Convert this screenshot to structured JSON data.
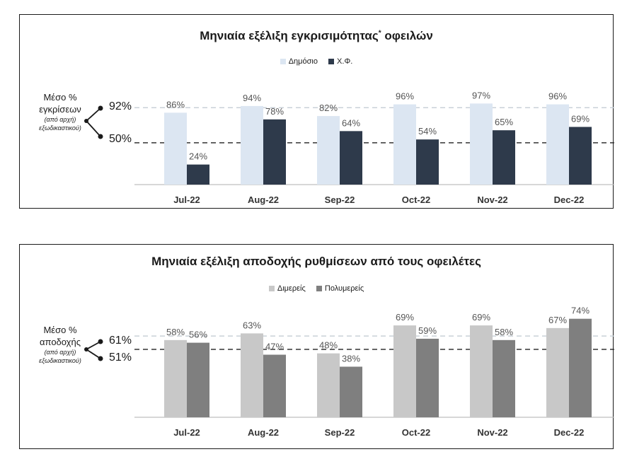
{
  "chart_data": [
    {
      "type": "bar",
      "title": "Μηνιαία εξέλιξη εγκρισιμότητας",
      "title_mark": "*",
      "title_suffix": "οφειλών",
      "categories": [
        "Jul-22",
        "Aug-22",
        "Sep-22",
        "Oct-22",
        "Nov-22",
        "Dec-22"
      ],
      "series": [
        {
          "name": "Δημόσιο",
          "values": [
            86,
            94,
            82,
            96,
            97,
            96
          ],
          "color": "#dce6f2"
        },
        {
          "name": "Χ.Φ.",
          "values": [
            24,
            78,
            64,
            54,
            65,
            69
          ],
          "color": "#2e3a4b"
        }
      ],
      "data_label_suffix": "%",
      "reference_lines": [
        {
          "value": 92,
          "label": "92%",
          "style": "dashed-light"
        },
        {
          "value": 50,
          "label": "50%",
          "style": "dashed-dark"
        }
      ],
      "side_label": {
        "line1": "Μέσο %",
        "line2": "εγκρίσεων",
        "note1": "(από αρχή)",
        "note2": "εξωδικαστικού)"
      },
      "ylim": [
        0,
        110
      ],
      "legend_position": "top",
      "grid": false
    },
    {
      "type": "bar",
      "title": "Μηνιαία εξέλιξη αποδοχής ρυθμίσεων από τους οφειλέτες",
      "categories": [
        "Jul-22",
        "Aug-22",
        "Sep-22",
        "Oct-22",
        "Nov-22",
        "Dec-22"
      ],
      "series": [
        {
          "name": "Διμερείς",
          "values": [
            58,
            63,
            48,
            69,
            69,
            67
          ],
          "color": "#c8c8c8"
        },
        {
          "name": "Πολυμερείς",
          "values": [
            56,
            47,
            38,
            59,
            58,
            74
          ],
          "color": "#7f7f7f"
        }
      ],
      "data_label_suffix": "%",
      "reference_lines": [
        {
          "value": 61,
          "label": "61%",
          "style": "dashed-light"
        },
        {
          "value": 51,
          "label": "51%",
          "style": "dashed-dark"
        }
      ],
      "side_label": {
        "line1": "Μέσο %",
        "line2": "αποδοχής",
        "note1": "(από αρχή)",
        "note2": "εξωδικαστικού)"
      },
      "ylim": [
        0,
        85
      ],
      "legend_position": "top",
      "grid": false
    }
  ]
}
